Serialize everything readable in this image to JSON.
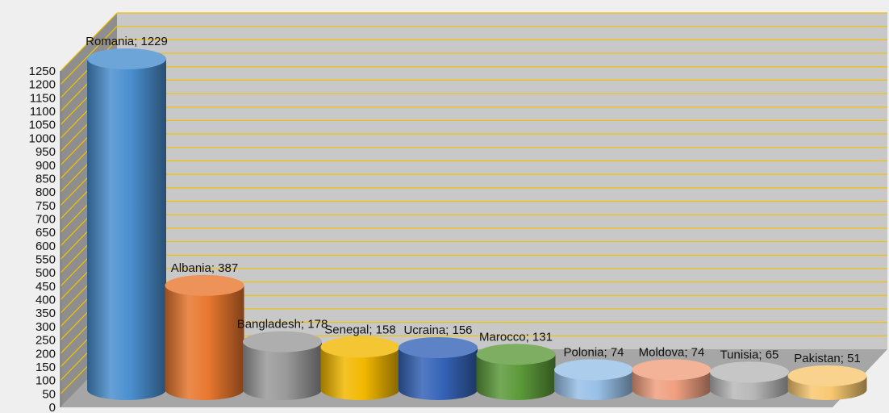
{
  "chart_data": {
    "type": "bar",
    "style": "3d-cylinder",
    "title": "",
    "xlabel": "",
    "ylabel": "",
    "ylim": [
      0,
      1250
    ],
    "ytick_step": 50,
    "grid": true,
    "categories": [
      "Romania",
      "Albania",
      "Bangladesh",
      "Senegal",
      "Ucraina",
      "Marocco",
      "Polonia",
      "Moldova",
      "Tunisia",
      "Pakistan"
    ],
    "values": [
      1229,
      387,
      178,
      158,
      156,
      131,
      74,
      74,
      65,
      51
    ],
    "data_labels": [
      "Romania; 1229",
      "Albania; 387",
      "Bangladesh; 178",
      "Senegal; 158",
      "Ucraina; 156",
      "Marocco; 131",
      "Polonia; 74",
      "Moldova; 74",
      "Tunisia; 65",
      "Pakistan; 51"
    ],
    "colors": [
      "#4a8fd0",
      "#e8772e",
      "#9a9a9a",
      "#f2b800",
      "#3564b8",
      "#5c9a3a",
      "#98c0e8",
      "#f0a080",
      "#b8b8b8",
      "#f8c870"
    ],
    "wall_color": "#c8c8c8",
    "floor_color": "#a6a6a6",
    "grid_color": "#f2c200"
  }
}
